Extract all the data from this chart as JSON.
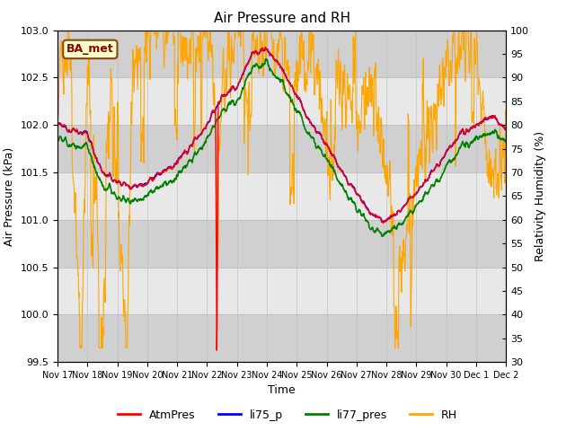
{
  "title": "Air Pressure and RH",
  "xlabel": "Time",
  "ylabel_left": "Air Pressure (kPa)",
  "ylabel_right": "Relativity Humidity (%)",
  "ylim_left": [
    99.5,
    103.0
  ],
  "ylim_right": [
    30,
    100
  ],
  "yticks_left": [
    99.5,
    100.0,
    100.5,
    101.0,
    101.5,
    102.0,
    102.5,
    103.0
  ],
  "yticks_right": [
    30,
    35,
    40,
    45,
    50,
    55,
    60,
    65,
    70,
    75,
    80,
    85,
    90,
    95,
    100
  ],
  "xtick_labels": [
    "Nov 17",
    "Nov 18",
    "Nov 19",
    "Nov 20",
    "Nov 21",
    "Nov 22",
    "Nov 23",
    "Nov 24",
    "Nov 25",
    "Nov 26",
    "Nov 27",
    "Nov 28",
    "Nov 29",
    "Nov 30",
    "Dec 1",
    "Dec 2"
  ],
  "annotation_box_text": "BA_met",
  "annotation_box_facecolor": "#ffffcc",
  "annotation_box_edgecolor": "#8B4513",
  "annotation_text_color": "#8B0000",
  "legend_entries": [
    "AtmPres",
    "li75_p",
    "li77_pres",
    "RH"
  ],
  "line_colors_list": [
    "red",
    "blue",
    "green",
    "orange"
  ],
  "plot_bg_color": "#e8e8e8",
  "band_color": "#d0d0d0",
  "grid_color": "#bbbbbb",
  "title_fontsize": 11,
  "axis_fontsize": 9,
  "tick_fontsize": 8,
  "xtick_fontsize": 7
}
